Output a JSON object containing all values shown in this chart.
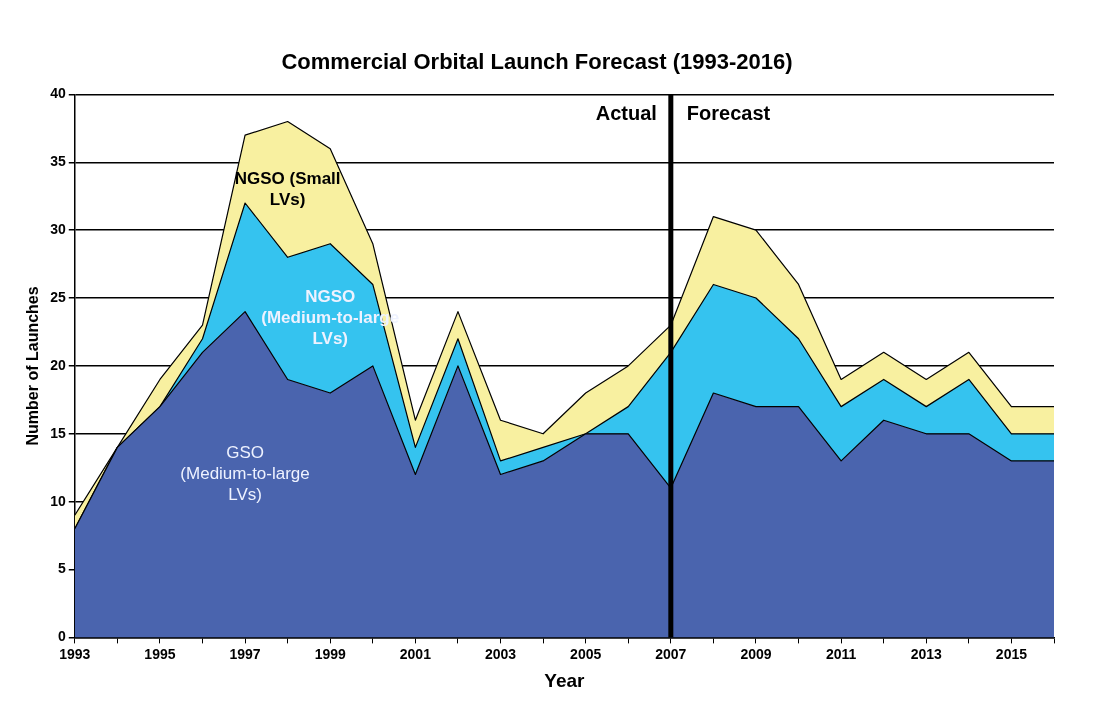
{
  "chart_data": {
    "type": "area",
    "title": "Commercial Orbital Launch Forecast (1993-2016)",
    "xlabel": "Year",
    "ylabel": "Number of Launches",
    "stacked": true,
    "x": [
      1993,
      1994,
      1995,
      1996,
      1997,
      1998,
      1999,
      2000,
      2001,
      2002,
      2003,
      2004,
      2005,
      2006,
      2007,
      2008,
      2009,
      2010,
      2011,
      2012,
      2013,
      2014,
      2015,
      2016
    ],
    "series": [
      {
        "name": "GSO (Medium-to-large LVs)",
        "color": "#4a64ae",
        "values": [
          8,
          14,
          17,
          21,
          24,
          19,
          18,
          20,
          12,
          20,
          12,
          13,
          15,
          15,
          11,
          18,
          17,
          17,
          13,
          16,
          15,
          15,
          13,
          13
        ]
      },
      {
        "name": "NGSO (Medium-to-large LVs)",
        "color": "#35c3ef",
        "values": [
          0,
          0,
          0,
          1,
          8,
          9,
          11,
          6,
          2,
          2,
          1,
          1,
          0,
          2,
          10,
          8,
          8,
          5,
          4,
          3,
          2,
          4,
          2,
          2
        ]
      },
      {
        "name": "NGSO (Small LVs)",
        "color": "#f8f0a0",
        "values": [
          1,
          0,
          2,
          1,
          5,
          10,
          7,
          3,
          2,
          2,
          3,
          1,
          3,
          3,
          2,
          5,
          5,
          4,
          2,
          2,
          2,
          2,
          2,
          2
        ]
      }
    ],
    "xlim": [
      1993,
      2016
    ],
    "xticks": [
      1993,
      {
        "value": 1994,
        "label": null
      },
      1995,
      {
        "value": 1996,
        "label": null
      },
      1997,
      {
        "value": 1998,
        "label": null
      },
      1999,
      {
        "value": 2000,
        "label": null
      },
      2001,
      {
        "value": 2002,
        "label": null
      },
      2003,
      {
        "value": 2004,
        "label": null
      },
      2005,
      {
        "value": 2006,
        "label": null
      },
      2007,
      {
        "value": 2008,
        "label": null
      },
      2009,
      {
        "value": 2010,
        "label": null
      },
      2011,
      {
        "value": 2012,
        "label": null
      },
      2013,
      {
        "value": 2014,
        "label": null
      },
      2015,
      {
        "value": 2016,
        "label": null
      }
    ],
    "ylim": [
      0,
      40
    ],
    "yticks": [
      0,
      5,
      10,
      15,
      20,
      25,
      30,
      35,
      40
    ],
    "grid": "y",
    "legend": false,
    "ref_lines": [
      {
        "axis": "x",
        "value": 2007,
        "color": "#000000"
      }
    ],
    "annotations": [
      "Actual",
      "Forecast"
    ]
  }
}
